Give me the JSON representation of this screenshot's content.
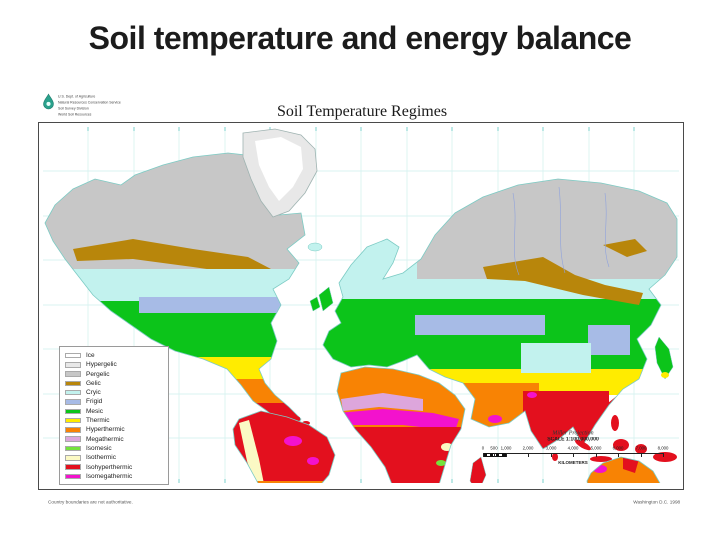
{
  "slide": {
    "title": "Soil temperature and energy balance"
  },
  "map": {
    "title": "Soil Temperature Regimes",
    "agency": {
      "lines": [
        "U.S. Dept. of Agriculture",
        "Natural Resources Conservation Service",
        "Soil Survey Division",
        "World Soil Resources"
      ]
    },
    "legend": {
      "items": [
        {
          "label": "Ice",
          "color": "#ffffff"
        },
        {
          "label": "Hypergelic",
          "color": "#e8e8e8"
        },
        {
          "label": "Pergelic",
          "color": "#c7c7c7"
        },
        {
          "label": "Gelic",
          "color": "#b8860b"
        },
        {
          "label": "Cryic",
          "color": "#c2f2ee"
        },
        {
          "label": "Frigid",
          "color": "#a7bbe6"
        },
        {
          "label": "Mesic",
          "color": "#0cc41a"
        },
        {
          "label": "Thermic",
          "color": "#ffec00"
        },
        {
          "label": "Hyperthermic",
          "color": "#f88304"
        },
        {
          "label": "Megathermic",
          "color": "#dda6dc"
        },
        {
          "label": "Isomesic",
          "color": "#74e33c"
        },
        {
          "label": "Isothermic",
          "color": "#fbf9c4"
        },
        {
          "label": "Isohyperthermic",
          "color": "#e3101e"
        },
        {
          "label": "Isomegathermic",
          "color": "#f312cd"
        }
      ]
    },
    "scale": {
      "projection": "Miller Projection",
      "ratio": "SCALE 1:100,000,000",
      "bar_labels": [
        "0",
        "500",
        "1,000",
        "2,000",
        "3,000",
        "4,000",
        "5,000",
        "6,000",
        "7,000",
        "8,000"
      ],
      "bar_max": 8000,
      "unit": "KILOMETERS"
    },
    "footer": {
      "left": "Country boundaries are not authoritative.",
      "right": "Washington D.C. 1998"
    }
  }
}
